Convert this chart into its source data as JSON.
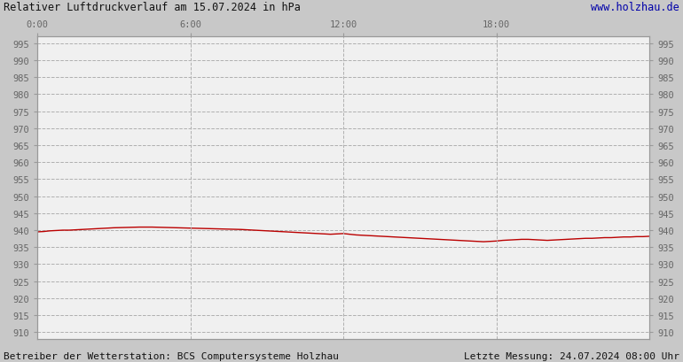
{
  "title_left": "Relativer Luftdruckverlauf am 15.07.2024 in hPa",
  "title_right": "www.holzhau.de",
  "footer_left": "Betreiber der Wetterstation: BCS Computersysteme Holzhau",
  "footer_right": "Letzte Messung: 24.07.2024 08:00 Uhr",
  "bg_color": "#c8c8c8",
  "plot_bg_color": "#f0f0f0",
  "line_color": "#bb0000",
  "grid_color": "#b0b0b0",
  "tick_color": "#999999",
  "label_color": "#666666",
  "title_color": "#111111",
  "url_color": "#0000aa",
  "footer_color": "#111111",
  "ylim": [
    908,
    997
  ],
  "yticks": [
    910,
    915,
    920,
    925,
    930,
    935,
    940,
    945,
    950,
    955,
    960,
    965,
    970,
    975,
    980,
    985,
    990,
    995
  ],
  "xtick_labels": [
    "0:00",
    "6:00",
    "12:00",
    "18:00"
  ],
  "xtick_positions": [
    0,
    6,
    12,
    18
  ],
  "xlim": [
    0,
    24
  ],
  "pressure_x": [
    0.0,
    0.25,
    0.5,
    0.75,
    1.0,
    1.25,
    1.5,
    1.75,
    2.0,
    2.25,
    2.5,
    2.75,
    3.0,
    3.5,
    4.0,
    4.5,
    5.0,
    5.5,
    6.0,
    6.5,
    7.0,
    7.5,
    8.0,
    8.25,
    8.5,
    8.75,
    9.0,
    9.25,
    9.5,
    9.75,
    10.0,
    10.25,
    10.5,
    10.75,
    11.0,
    11.25,
    11.5,
    11.75,
    12.0,
    12.25,
    12.5,
    12.75,
    13.0,
    13.25,
    13.5,
    13.75,
    14.0,
    14.25,
    14.5,
    14.75,
    15.0,
    15.25,
    15.5,
    15.75,
    16.0,
    16.25,
    16.5,
    16.75,
    17.0,
    17.25,
    17.5,
    17.75,
    18.0,
    18.25,
    18.5,
    18.75,
    19.0,
    19.25,
    19.5,
    19.75,
    20.0,
    20.25,
    20.5,
    20.75,
    21.0,
    21.25,
    21.5,
    21.75,
    22.0,
    22.25,
    22.5,
    22.75,
    23.0,
    23.25,
    23.5,
    23.75,
    24.0
  ],
  "pressure_y": [
    939.5,
    939.6,
    939.8,
    939.9,
    940.0,
    940.0,
    940.1,
    940.2,
    940.3,
    940.4,
    940.5,
    940.6,
    940.7,
    940.8,
    940.9,
    940.9,
    940.8,
    940.7,
    940.6,
    940.5,
    940.4,
    940.3,
    940.2,
    940.1,
    940.0,
    939.9,
    939.8,
    939.7,
    939.6,
    939.5,
    939.4,
    939.3,
    939.2,
    939.1,
    939.0,
    938.9,
    938.8,
    938.9,
    939.0,
    938.8,
    938.6,
    938.5,
    938.4,
    938.3,
    938.2,
    938.1,
    938.0,
    937.9,
    937.8,
    937.7,
    937.6,
    937.5,
    937.4,
    937.3,
    937.2,
    937.1,
    937.0,
    936.9,
    936.8,
    936.7,
    936.6,
    936.7,
    936.8,
    937.0,
    937.1,
    937.2,
    937.3,
    937.3,
    937.2,
    937.1,
    937.0,
    937.1,
    937.2,
    937.3,
    937.4,
    937.5,
    937.6,
    937.6,
    937.7,
    937.8,
    937.8,
    937.9,
    938.0,
    938.0,
    938.1,
    938.1,
    938.2
  ]
}
